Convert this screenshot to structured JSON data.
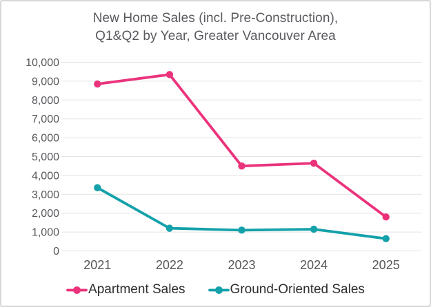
{
  "header": {
    "title_line1": "New Home Sales (incl. Pre-Construction),",
    "title_line2": "Q1&Q2 by Year, Greater Vancouver Area"
  },
  "chart_data": {
    "type": "line",
    "title": "New Home Sales (incl. Pre-Construction), Q1&Q2 by Year, Greater Vancouver Area",
    "categories": [
      "2021",
      "2022",
      "2023",
      "2024",
      "2025"
    ],
    "series": [
      {
        "name": "Apartment Sales",
        "color": "#eb337c",
        "values": [
          8850,
          9350,
          4500,
          4650,
          1800
        ]
      },
      {
        "name": "Ground-Oriented Sales",
        "color": "#14a1aa",
        "values": [
          3350,
          1200,
          1100,
          1150,
          650
        ]
      }
    ],
    "ylim": [
      0,
      10000
    ],
    "ytick_step": 1000,
    "y_tick_labels": [
      "10,000",
      "9,000",
      "8,000",
      "7,000",
      "6,000",
      "5,000",
      "4,000",
      "3,000",
      "2,000",
      "1,000",
      "0"
    ],
    "xlabel": "",
    "ylabel": "",
    "grid": true,
    "legend_position": "bottom",
    "theme": {
      "background": "#ffffff",
      "border": "#d7d7d7",
      "gridline": "#e4e4e4",
      "title_color": "#595a5e",
      "tick_color": "#56575b",
      "legend_text_color": "#2d2d2f"
    }
  }
}
